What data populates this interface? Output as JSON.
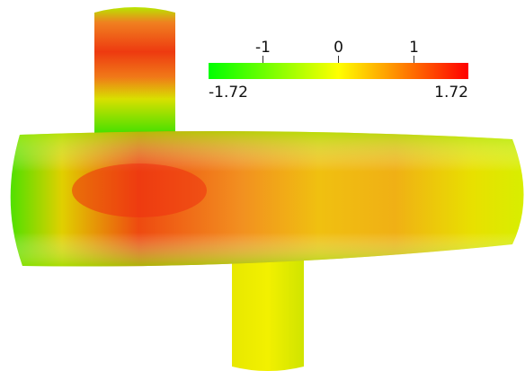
{
  "colorbar": {
    "range": [
      -1.72,
      1.72
    ],
    "ticks": [
      -1,
      0,
      1
    ],
    "colors": [
      "#00ff00",
      "#ffff00",
      "#ff0000"
    ]
  }
}
